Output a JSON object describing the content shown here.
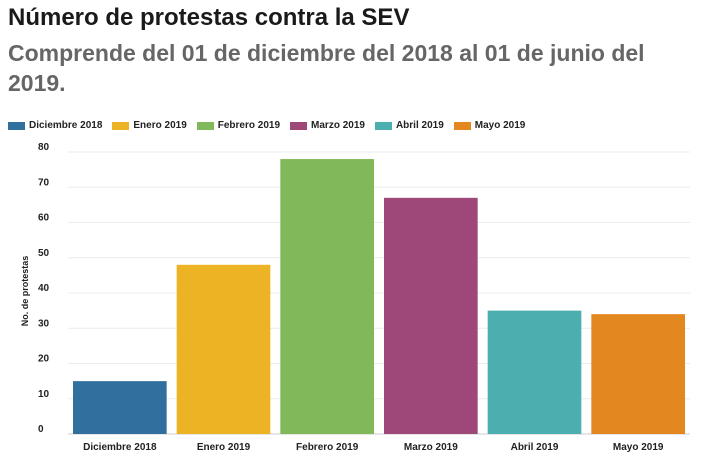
{
  "header": {
    "title": "Número de protestas contra la SEV",
    "subtitle": "Comprende del 01 de diciembre del 2018 al 01 de junio del 2019."
  },
  "chart_data": {
    "type": "bar",
    "categories": [
      "Diciembre 2018",
      "Enero 2019",
      "Febrero 2019",
      "Marzo 2019",
      "Abril 2019",
      "Mayo 2019"
    ],
    "values": [
      15,
      48,
      78,
      67,
      35,
      34
    ],
    "colors": [
      "#31709e",
      "#ecb424",
      "#80b85a",
      "#9d4878",
      "#4cafaf",
      "#e3871f"
    ],
    "legend": [
      "Diciembre 2018",
      "Enero 2019",
      "Febrero 2019",
      "Marzo 2019",
      "Abril 2019",
      "Mayo 2019"
    ],
    "legend_position": "top-left",
    "ylabel": "No. de protestas",
    "xlabel": "",
    "ylim": [
      0,
      80
    ],
    "yticks": [
      0,
      10,
      20,
      30,
      40,
      50,
      60,
      70,
      80
    ],
    "grid": true
  }
}
